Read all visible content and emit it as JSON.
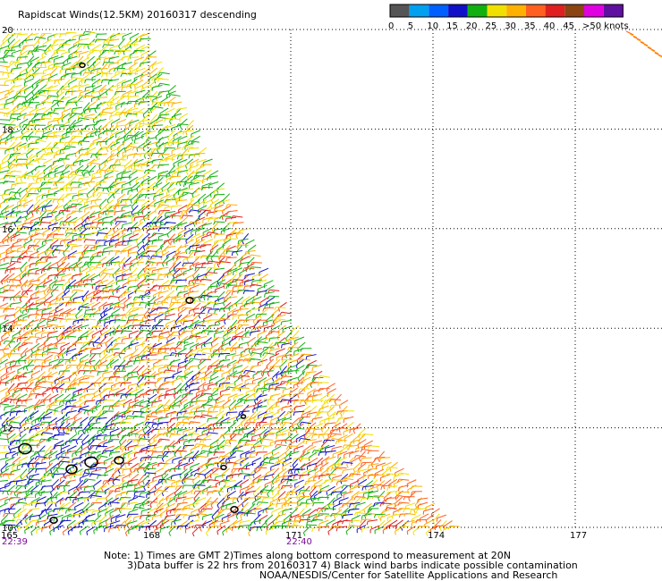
{
  "title": "Rapidscat Winds(12.5KM) 20160317 descending",
  "legend": {
    "labels": [
      "0",
      "5",
      "10",
      "15",
      "20",
      "25",
      "30",
      "35",
      "40",
      "45",
      ">50 knots"
    ],
    "colors": [
      "#555555",
      "#00a0f0",
      "#0060ff",
      "#1010c8",
      "#10b010",
      "#f0e000",
      "#ffb000",
      "#ff6020",
      "#e02020",
      "#8b4513",
      "#e000e0",
      "#6010a0"
    ]
  },
  "notes": {
    "line1": "Note: 1) Times are GMT 2)Times along bottom correspond to measurement at 20N",
    "line2": "3)Data buffer is 22 hrs from 20160317 4) Black wind barbs indicate possible contamination",
    "line3": "NOAA/NESDIS/Center for Satellite Applications and Research"
  },
  "chart_data": {
    "type": "wind-barb map",
    "title": "Rapidscat Winds(12.5KM) 20160317 descending",
    "x_ticks": [
      "165",
      "168",
      "171",
      "174",
      "177"
    ],
    "y_ticks": [
      "10",
      "12",
      "14",
      "16",
      "18",
      "20"
    ],
    "time_labels": [
      {
        "lon": 165,
        "label": "22:39"
      },
      {
        "lon": 171,
        "label": "22:40"
      }
    ],
    "xlim": [
      165,
      179.5
    ],
    "ylim": [
      10,
      20
    ],
    "grid": true,
    "swath_right_edge": [
      {
        "lat": 20,
        "lon": 168.0
      },
      {
        "lat": 14,
        "lon": 171.2
      },
      {
        "lat": 12,
        "lon": 172.6
      },
      {
        "lat": 10,
        "lon": 174.6
      }
    ],
    "units": "knots"
  }
}
